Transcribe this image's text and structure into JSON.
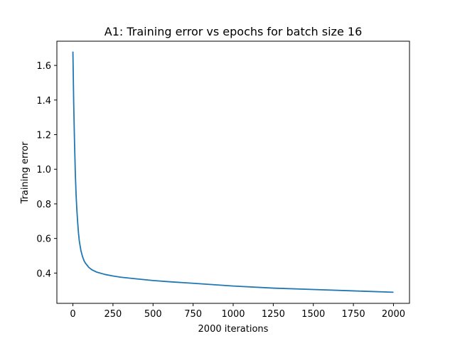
{
  "chart_data": {
    "type": "line",
    "title": "A1: Training error vs epochs for batch size 16",
    "xlabel": "2000 iterations",
    "ylabel": "Training error",
    "xlim": [
      -100,
      2100
    ],
    "ylim": [
      0.225,
      1.74
    ],
    "xticks": [
      0,
      250,
      500,
      750,
      1000,
      1250,
      1500,
      1750,
      2000
    ],
    "yticks": [
      0.4,
      0.6,
      0.8,
      1.0,
      1.2,
      1.4,
      1.6
    ],
    "grid": false,
    "color": "#1f77b4",
    "series": [
      {
        "x": [
          0,
          5,
          10,
          15,
          20,
          25,
          30,
          35,
          40,
          50,
          60,
          70,
          80,
          100,
          120,
          150,
          200,
          250,
          300,
          400,
          500,
          600,
          750,
          1000,
          1250,
          1500,
          1750,
          2000
        ],
        "values": [
          1.68,
          1.38,
          1.16,
          0.98,
          0.85,
          0.76,
          0.69,
          0.63,
          0.585,
          0.53,
          0.495,
          0.47,
          0.455,
          0.432,
          0.418,
          0.405,
          0.392,
          0.383,
          0.376,
          0.366,
          0.357,
          0.35,
          0.341,
          0.325,
          0.313,
          0.305,
          0.297,
          0.289
        ]
      }
    ]
  }
}
